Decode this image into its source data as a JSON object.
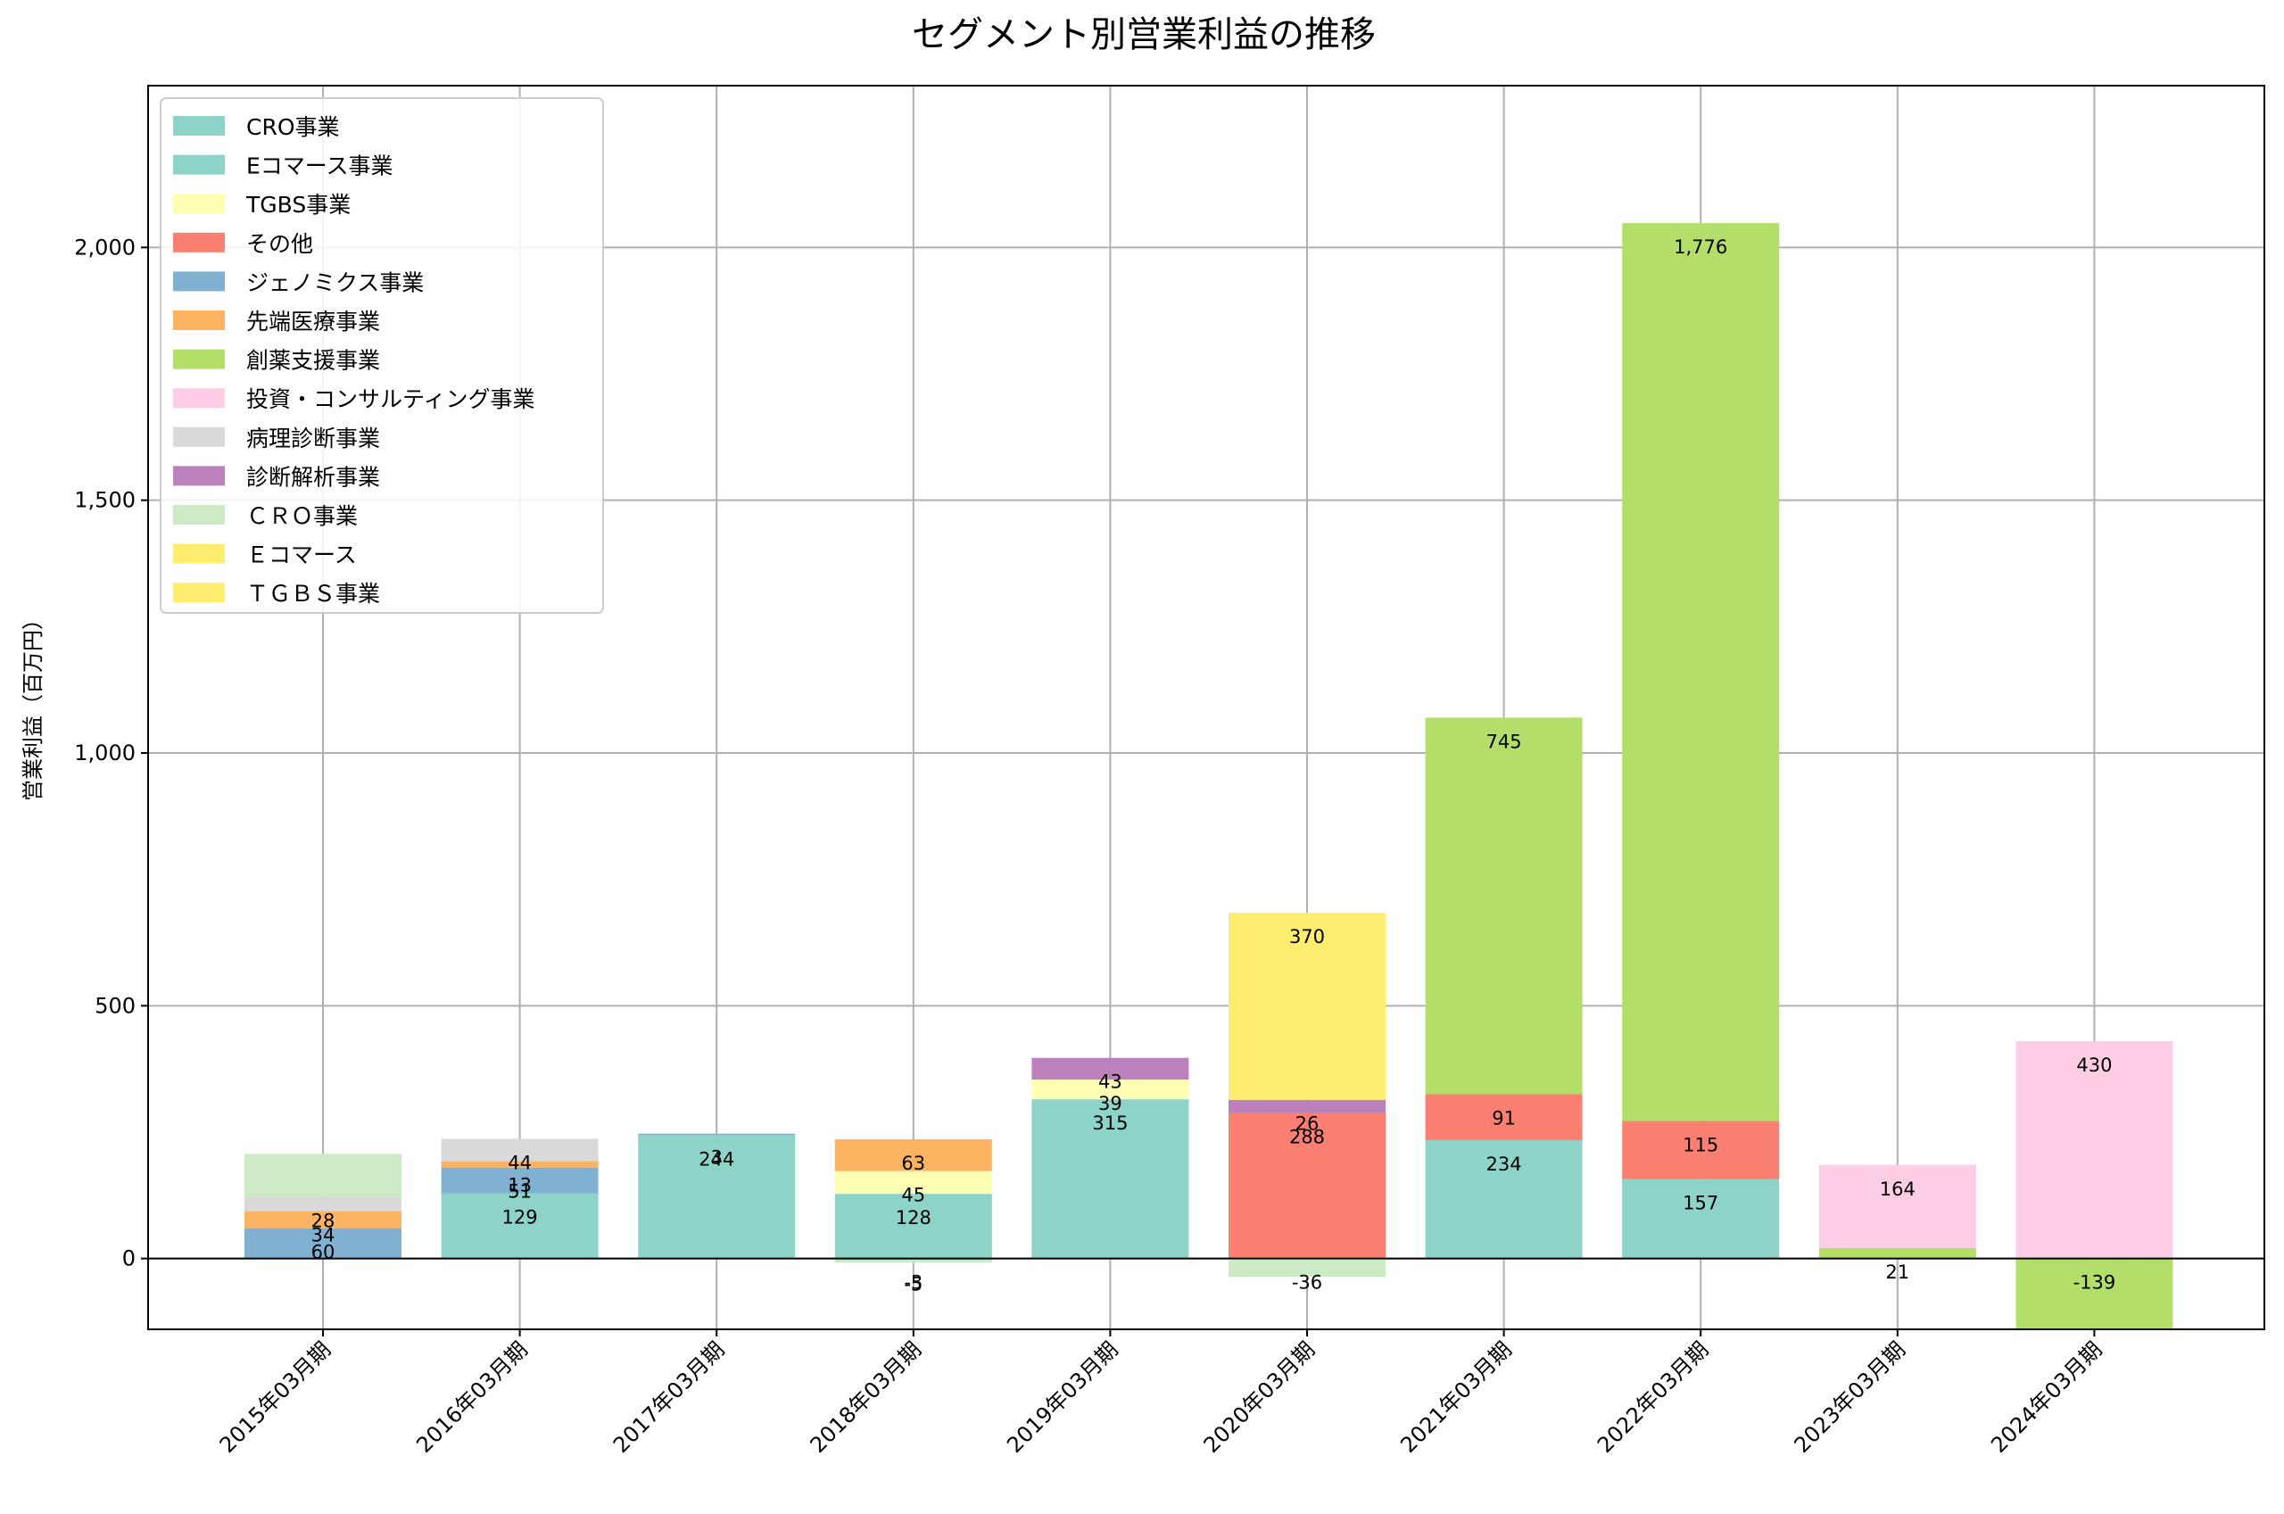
{
  "chart_data": {
    "type": "bar",
    "stacked": true,
    "title": "セグメント別営業利益の推移",
    "xlabel": "",
    "ylabel": "営業利益（百万円）",
    "ylim": [
      -140,
      2320
    ],
    "yticks": [
      0,
      500,
      1000,
      1500,
      2000
    ],
    "ytick_labels": [
      "0",
      "500",
      "1,000",
      "1,500",
      "2,000"
    ],
    "grid": true,
    "legend_position": "top-left",
    "categories": [
      "2015年03月期",
      "2016年03月期",
      "2017年03月期",
      "2018年03月期",
      "2019年03月期",
      "2020年03月期",
      "2021年03月期",
      "2022年03月期",
      "2023年03月期",
      "2024年03月期"
    ],
    "series": [
      {
        "name": "CRO事業",
        "color": "#8dd3c7",
        "values": [
          0,
          0,
          0,
          -3,
          0,
          0,
          0,
          0,
          0,
          0
        ],
        "labels": [
          "",
          "",
          "",
          "-3",
          "",
          "",
          "",
          "",
          "",
          ""
        ]
      },
      {
        "name": "Eコマース事業",
        "color": "#8dd3c7",
        "values": [
          0,
          129,
          244,
          128,
          315,
          0,
          234,
          157,
          0,
          0
        ],
        "labels": [
          "",
          "129",
          "244",
          "128",
          "315",
          "",
          "234",
          "157",
          "",
          ""
        ]
      },
      {
        "name": "TGBS事業",
        "color": "#ffffb3",
        "values": [
          0,
          0,
          0,
          45,
          39,
          0,
          0,
          0,
          0,
          0
        ],
        "labels": [
          "",
          "",
          "",
          "45",
          "39",
          "",
          "",
          "",
          "",
          ""
        ]
      },
      {
        "name": "その他",
        "color": "#fb8072",
        "values": [
          0,
          0,
          0,
          0,
          0,
          288,
          91,
          115,
          0,
          0
        ],
        "labels": [
          "",
          "",
          "",
          "",
          "",
          "288",
          "91",
          "115",
          "",
          ""
        ]
      },
      {
        "name": "ジェノミクス事業",
        "color": "#80b1d3",
        "values": [
          60,
          51,
          3,
          0,
          0,
          0,
          0,
          0,
          0,
          0
        ],
        "labels": [
          "60",
          "51",
          "3",
          "",
          "",
          "",
          "",
          "",
          "",
          ""
        ]
      },
      {
        "name": "先端医療事業",
        "color": "#fdb462",
        "values": [
          34,
          13,
          0,
          63,
          0,
          0,
          0,
          0,
          0,
          0
        ],
        "labels": [
          "34",
          "13",
          "",
          "63",
          "",
          "",
          "",
          "",
          "",
          ""
        ]
      },
      {
        "name": "創薬支援事業",
        "color": "#b3de69",
        "values": [
          0,
          0,
          0,
          0,
          0,
          0,
          745,
          1776,
          21,
          -139
        ],
        "labels": [
          "",
          "",
          "",
          "",
          "",
          "",
          "745",
          "1,776",
          "21",
          "-139"
        ]
      },
      {
        "name": "投資・コンサルティング事業",
        "color": "#fccde5",
        "values": [
          0,
          0,
          0,
          0,
          0,
          0,
          0,
          0,
          164,
          430
        ],
        "labels": [
          "",
          "",
          "",
          "",
          "",
          "",
          "",
          "",
          "164",
          "430"
        ]
      },
      {
        "name": "病理診断事業",
        "color": "#d9d9d9",
        "values": [
          28,
          44,
          0,
          0,
          0,
          0,
          0,
          0,
          0,
          0
        ],
        "labels": [
          "28",
          "44",
          "",
          "",
          "",
          "",
          "",
          "",
          "",
          ""
        ]
      },
      {
        "name": "診断解析事業",
        "color": "#bc80bd",
        "values": [
          0,
          0,
          0,
          0,
          43,
          26,
          0,
          0,
          0,
          0
        ],
        "labels": [
          "",
          "",
          "",
          "",
          "43",
          "26",
          "",
          "",
          "",
          ""
        ]
      },
      {
        "name": "ＣＲＯ事業",
        "color": "#ccebc5",
        "values": [
          85,
          0,
          0,
          -5,
          0,
          -36,
          0,
          0,
          0,
          0
        ],
        "labels": [
          "",
          "",
          "",
          "-5",
          "",
          "-36",
          "",
          "",
          "",
          ""
        ]
      },
      {
        "name": "Ｅコマース",
        "color": "#ffed6f",
        "values": [
          0,
          0,
          0,
          0,
          0,
          0,
          0,
          0,
          0,
          0
        ],
        "labels": [
          "",
          "",
          "",
          "",
          "",
          "",
          "",
          "",
          "",
          ""
        ]
      },
      {
        "name": "ＴＧＢＳ事業",
        "color": "#ffed6f",
        "values": [
          0,
          0,
          0,
          0,
          0,
          370,
          0,
          0,
          0,
          0
        ],
        "labels": [
          "",
          "",
          "",
          "",
          "",
          "370",
          "",
          "",
          "",
          ""
        ]
      }
    ]
  }
}
